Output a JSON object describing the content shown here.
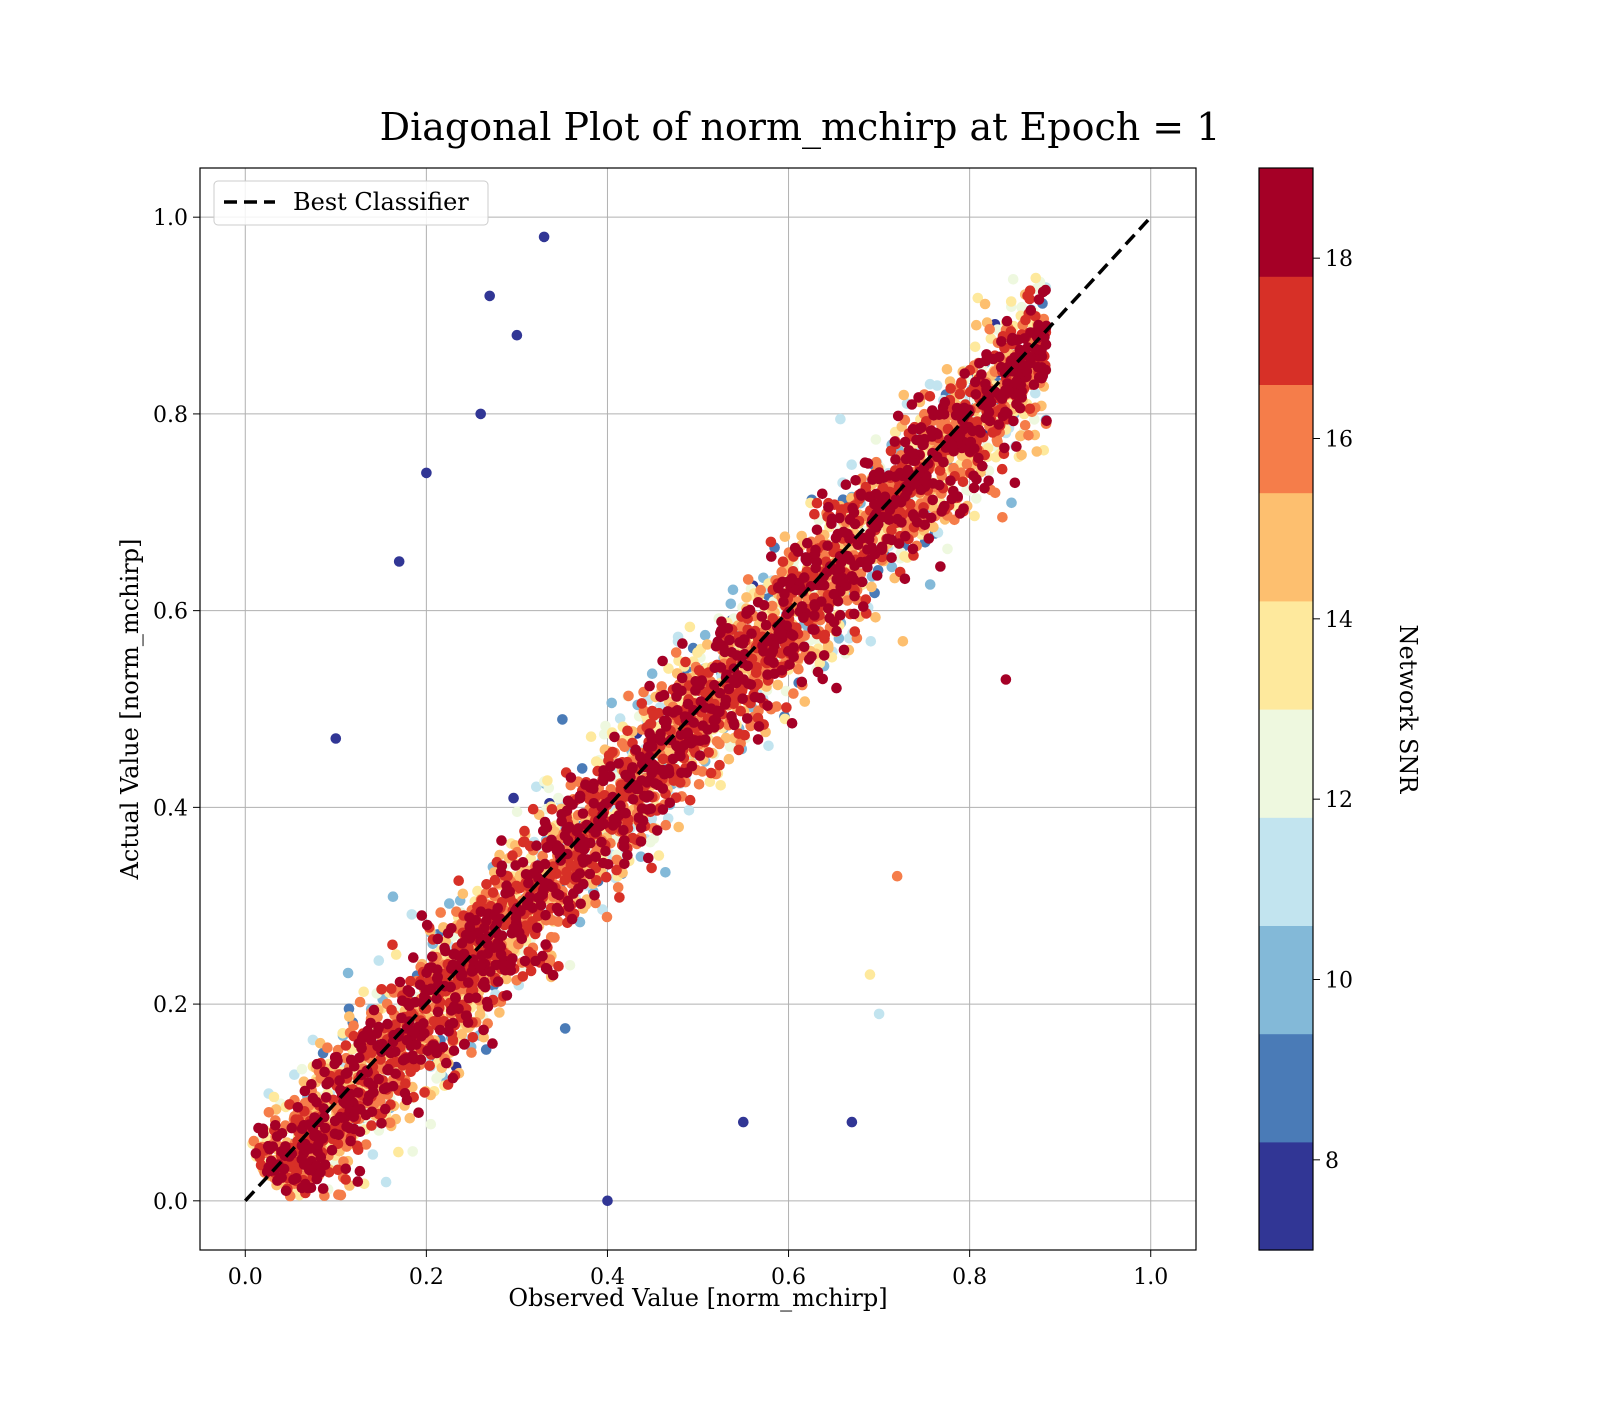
{
  "chart_data": {
    "type": "scatter",
    "title": "Diagonal Plot of norm_mchirp at Epoch = 1",
    "xlabel": "Observed Value [norm_mchirp]",
    "ylabel": "Actual Value [norm_mchirp]",
    "xlim": [
      -0.05,
      1.05
    ],
    "ylim": [
      -0.05,
      1.05
    ],
    "xticks": [
      "0.0",
      "0.2",
      "0.4",
      "0.6",
      "0.8",
      "1.0"
    ],
    "yticks": [
      "0.0",
      "0.2",
      "0.4",
      "0.6",
      "0.8",
      "1.0"
    ],
    "grid": true,
    "legend": {
      "location": "upper-left",
      "entries": [
        "Best Classifier"
      ]
    },
    "reference_line": {
      "name": "Best Classifier",
      "x": [
        0.0,
        1.0
      ],
      "y": [
        0.0,
        1.0
      ],
      "style": "dashed",
      "color": "#000000"
    },
    "colorbar": {
      "label": "Network SNR",
      "range": [
        7,
        19
      ],
      "ticks": [
        "8",
        "10",
        "12",
        "14",
        "16",
        "18"
      ],
      "bins": 10,
      "colors": [
        "#313695",
        "#4a7bb7",
        "#83b9d8",
        "#c2e4ef",
        "#eef8df",
        "#fee99d",
        "#fdbf6f",
        "#f57d4a",
        "#d73027",
        "#a50026"
      ]
    },
    "series": [
      {
        "description_x_range": [
          0.0,
          0.9
        ],
        "description_y_range": [
          0.0,
          1.0
        ],
        "sample_points": [
          {
            "x": 0.33,
            "y": 0.98,
            "snr": 8
          },
          {
            "x": 0.27,
            "y": 0.92,
            "snr": 7.5
          },
          {
            "x": 0.2,
            "y": 0.74,
            "snr": 8
          },
          {
            "x": 0.1,
            "y": 0.47,
            "snr": 7.5
          },
          {
            "x": 0.17,
            "y": 0.65,
            "snr": 8
          },
          {
            "x": 0.55,
            "y": 0.08,
            "snr": 8
          },
          {
            "x": 0.67,
            "y": 0.08,
            "snr": 8
          },
          {
            "x": 0.4,
            "y": 0.0,
            "snr": 8
          },
          {
            "x": 0.84,
            "y": 0.53,
            "snr": 18.5
          },
          {
            "x": 0.88,
            "y": 0.88,
            "snr": 16
          },
          {
            "x": 0.85,
            "y": 0.73,
            "snr": 19
          },
          {
            "x": 0.7,
            "y": 0.19,
            "snr": 11
          },
          {
            "x": 0.69,
            "y": 0.23,
            "snr": 13.5
          },
          {
            "x": 0.72,
            "y": 0.33,
            "snr": 15.5
          },
          {
            "x": 0.3,
            "y": 0.88,
            "snr": 8
          },
          {
            "x": 0.26,
            "y": 0.8,
            "snr": 8
          }
        ]
      }
    ]
  }
}
